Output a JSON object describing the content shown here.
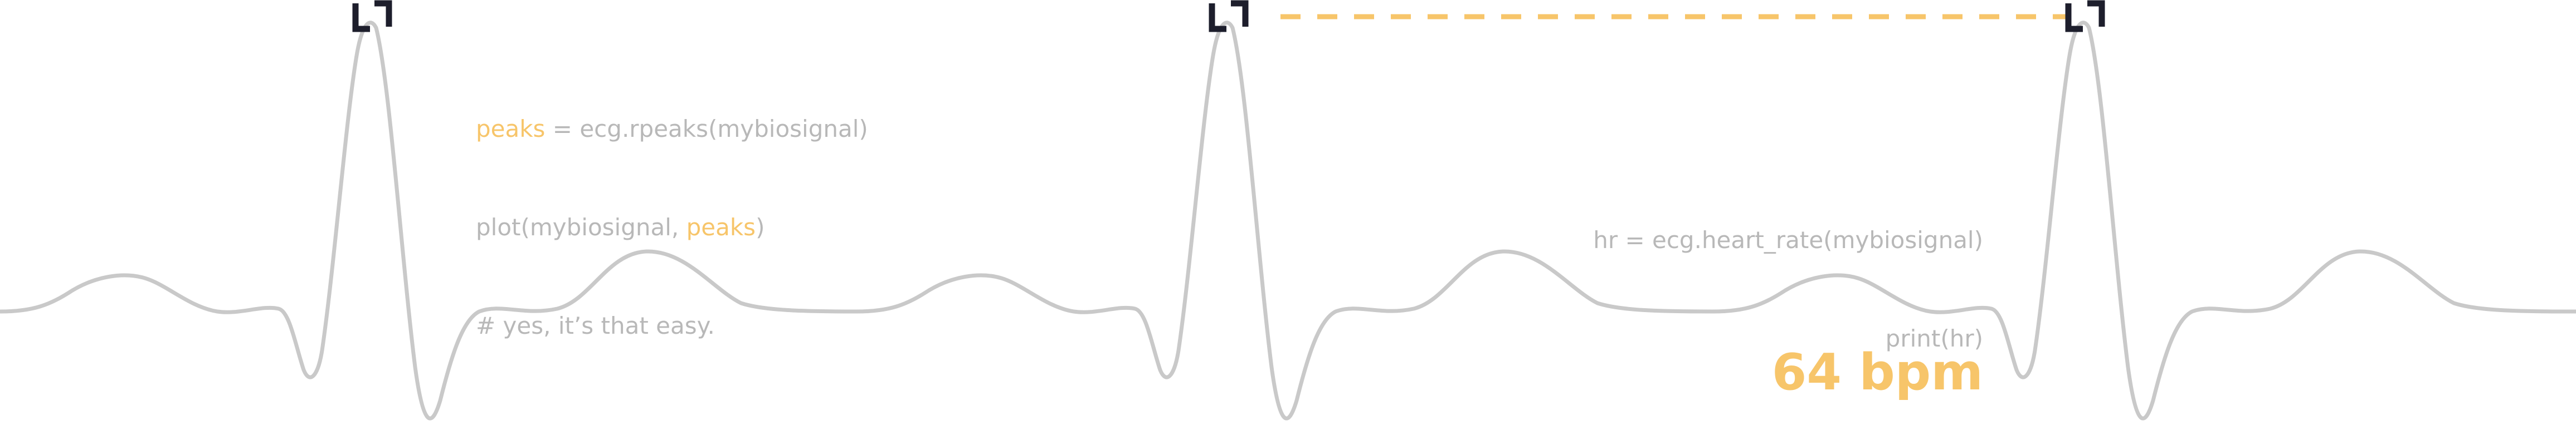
{
  "colors": {
    "background": "#ffffff",
    "signal": "#c9c9c9",
    "code_text": "#b8b8b8",
    "accent": "#f7c56a",
    "peak_marker": "#1d1e2c"
  },
  "code_left": {
    "line1": {
      "keyword": "peaks",
      "rest": " = ecg.rpeaks(mybiosignal)"
    },
    "line2": {
      "prefix": "plot(mybiosignal, ",
      "keyword": "peaks",
      "suffix": ")"
    },
    "line3": "# yes, it’s that easy."
  },
  "code_right": {
    "line1": "hr = ecg.heart_rate(mybiosignal)",
    "line2": "print(hr)"
  },
  "heart_rate_label": "64 bpm",
  "icons": {
    "peak_marker": "corner-bracket-icon"
  }
}
